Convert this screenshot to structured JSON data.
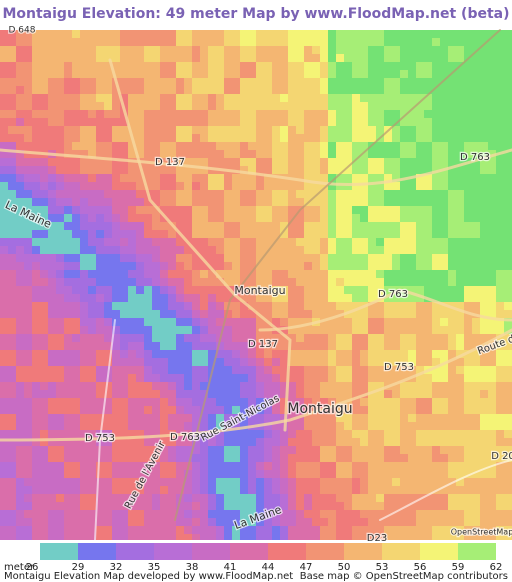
{
  "header": {
    "title": "Montaigu Elevation: 49 meter Map by www.FloodMap.net (beta)"
  },
  "map": {
    "labels": [
      "D 648",
      "D 137",
      "D 763",
      "La Maine",
      "Montaigu",
      "D 763",
      "D 137",
      "Route d",
      "D 753",
      "Montaigu",
      "D 753",
      "D 763",
      "Rue Saint-Nicolas",
      "Rue de l'Avenir",
      "D 20",
      "La Maine",
      "D23",
      "OpenStreetMap"
    ]
  },
  "legend": {
    "unit": "meter",
    "values": [
      26,
      29,
      32,
      35,
      38,
      41,
      44,
      47,
      50,
      53,
      56,
      59,
      62
    ],
    "colors": [
      "#72cdc6",
      "#7676ee",
      "#a46ee0",
      "#b86ed6",
      "#c86cc4",
      "#da6eaa",
      "#f07a7a",
      "#f29474",
      "#f4b672",
      "#f4d672",
      "#f4f476",
      "#a6ee76",
      "#74e274"
    ]
  },
  "footer": {
    "left": "Montaigu Elevation Map developed by www.FloodMap.net",
    "right": "Base map © OpenStreetMap contributors"
  }
}
